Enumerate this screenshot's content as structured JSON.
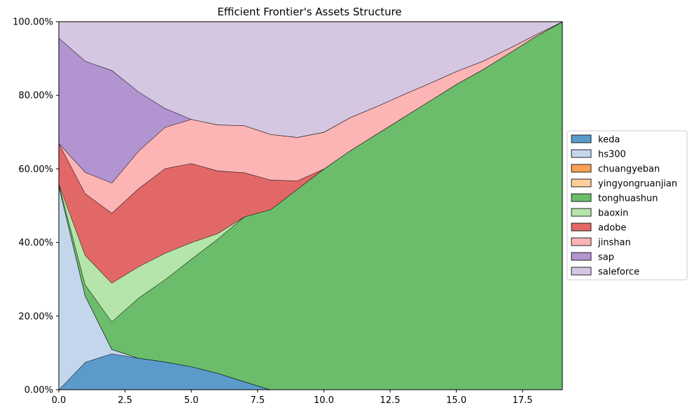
{
  "chart_data": {
    "type": "area",
    "stacked": true,
    "normalized": true,
    "title": "Efficient Frontier's Assets Structure",
    "xlabel": "",
    "ylabel": "",
    "xlim": [
      0,
      19
    ],
    "ylim": [
      0,
      1
    ],
    "grid": true,
    "legend_position": "right-center",
    "x": [
      0,
      1,
      2,
      3,
      4,
      5,
      6,
      7,
      8,
      9,
      10,
      11,
      12,
      13,
      14,
      15,
      16,
      17,
      18,
      19
    ],
    "x_ticks": [
      0,
      2.5,
      5,
      7.5,
      10,
      12.5,
      15,
      17.5
    ],
    "x_tick_labels": [
      "0.0",
      "2.5",
      "5.0",
      "7.5",
      "10.0",
      "12.5",
      "15.0",
      "17.5"
    ],
    "y_ticks": [
      0,
      0.2,
      0.4,
      0.6,
      0.8,
      1.0
    ],
    "y_tick_labels": [
      "0.00%",
      "20.00%",
      "40.00%",
      "60.00%",
      "80.00%",
      "100.00%"
    ],
    "series": [
      {
        "name": "keda",
        "color": "#5b9bcc",
        "values": [
          0,
          0.075,
          0.098,
          0.086,
          0.076,
          0.063,
          0.045,
          0.022,
          0,
          0,
          0,
          0,
          0,
          0,
          0,
          0,
          0,
          0,
          0,
          0
        ]
      },
      {
        "name": "hs300",
        "color": "#c4d6ec",
        "values": [
          0.555,
          0.18,
          0.012,
          0,
          0,
          0,
          0,
          0,
          0,
          0,
          0,
          0,
          0,
          0,
          0,
          0,
          0,
          0,
          0,
          0
        ]
      },
      {
        "name": "chuangyeban",
        "color": "#f9a054",
        "values": [
          0,
          0,
          0,
          0,
          0,
          0,
          0,
          0,
          0,
          0,
          0,
          0,
          0,
          0,
          0,
          0,
          0,
          0,
          0,
          0
        ]
      },
      {
        "name": "yingyongruanjian",
        "color": "#fdcf9b",
        "values": [
          0,
          0,
          0,
          0,
          0,
          0,
          0,
          0,
          0,
          0,
          0,
          0,
          0,
          0,
          0,
          0,
          0,
          0,
          0,
          0
        ]
      },
      {
        "name": "tonghuashun",
        "color": "#6bbd6b",
        "values": [
          0.005,
          0.03,
          0.075,
          0.163,
          0.223,
          0.292,
          0.365,
          0.448,
          0.49,
          0.545,
          0.6,
          0.65,
          0.695,
          0.74,
          0.785,
          0.83,
          0.87,
          0.915,
          0.96,
          1.0
        ]
      },
      {
        "name": "baoxin",
        "color": "#b5e5ab",
        "values": [
          0,
          0.08,
          0.105,
          0.085,
          0.072,
          0.045,
          0.015,
          0,
          0,
          0,
          0,
          0,
          0,
          0,
          0,
          0,
          0,
          0,
          0,
          0
        ]
      },
      {
        "name": "adobe",
        "color": "#e26868",
        "values": [
          0.11,
          0.168,
          0.19,
          0.212,
          0.23,
          0.215,
          0.17,
          0.12,
          0.08,
          0.023,
          0,
          0,
          0,
          0,
          0,
          0,
          0,
          0,
          0,
          0
        ]
      },
      {
        "name": "jinshan",
        "color": "#fdb4b4",
        "values": [
          0,
          0.058,
          0.082,
          0.102,
          0.112,
          0.12,
          0.125,
          0.128,
          0.124,
          0.118,
          0.1,
          0.09,
          0.075,
          0.062,
          0.048,
          0.035,
          0.023,
          0.013,
          0.005,
          0
        ]
      },
      {
        "name": "sap",
        "color": "#b194d0",
        "values": [
          0.286,
          0.302,
          0.306,
          0.162,
          0.052,
          0,
          0,
          0,
          0,
          0,
          0,
          0,
          0,
          0,
          0,
          0,
          0,
          0,
          0,
          0
        ]
      },
      {
        "name": "saleforce",
        "color": "#d5c7e1",
        "values": [
          0.044,
          0.107,
          0.132,
          0.19,
          0.235,
          0.265,
          0.28,
          0.282,
          0.306,
          0.314,
          0.3,
          0.26,
          0.23,
          0.198,
          0.167,
          0.135,
          0.107,
          0.072,
          0.035,
          0
        ]
      }
    ]
  }
}
